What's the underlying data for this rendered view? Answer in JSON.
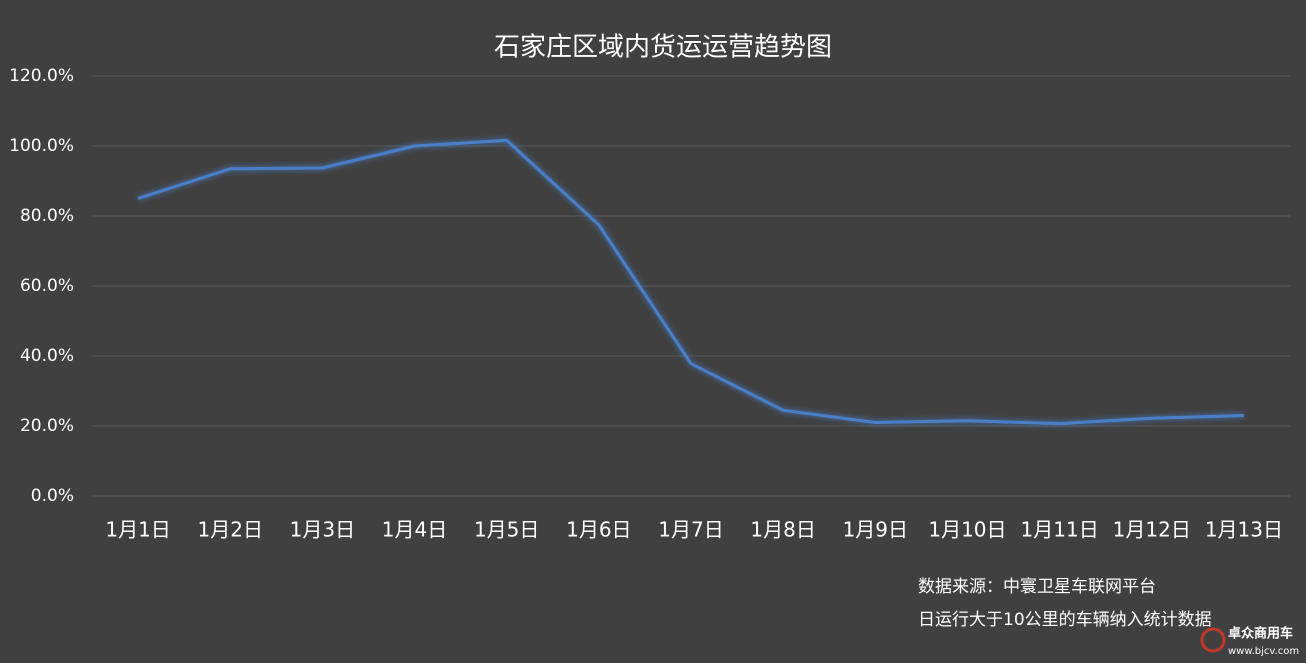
{
  "chart_data": {
    "type": "line",
    "title": "石家庄区域内货运运营趋势图",
    "categories": [
      "1月1日",
      "1月2日",
      "1月3日",
      "1月4日",
      "1月5日",
      "1月6日",
      "1月7日",
      "1月8日",
      "1月9日",
      "1月10日",
      "1月11日",
      "1月12日",
      "1月13日"
    ],
    "values": [
      85,
      93.5,
      93.7,
      100,
      101.6,
      77.5,
      37.8,
      24.5,
      21,
      21.5,
      20.7,
      22.2,
      23
    ],
    "color": "#4a7fc8",
    "ylim": [
      0,
      120
    ],
    "yticks": [
      {
        "value": 0,
        "label": "0.0%"
      },
      {
        "value": 20,
        "label": "20.0%"
      },
      {
        "value": 40,
        "label": "40.0%"
      },
      {
        "value": 60,
        "label": "60.0%"
      },
      {
        "value": 80,
        "label": "80.0%"
      },
      {
        "value": 100,
        "label": "100.0%"
      },
      {
        "value": 120,
        "label": "120.0%"
      }
    ],
    "grid": true,
    "annotations": [
      "数据来源：中寰卫星车联网平台",
      "日运行大于10公里的车辆纳入统计数据"
    ],
    "watermark": {
      "name": "卓众商用车",
      "url": "www.bjcv.com"
    }
  }
}
